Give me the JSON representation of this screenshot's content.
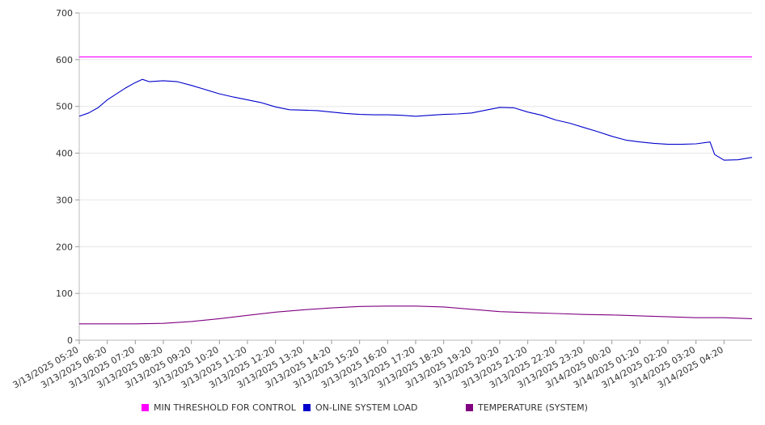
{
  "chart_data": {
    "type": "line",
    "ylim": [
      0,
      700
    ],
    "yticks": [
      0,
      100,
      200,
      300,
      400,
      500,
      600,
      700
    ],
    "xticks": [
      "3/13/2025 05:20",
      "3/13/2025 06:20",
      "3/13/2025 07:20",
      "3/13/2025 08:20",
      "3/13/2025 09:20",
      "3/13/2025 10:20",
      "3/13/2025 11:20",
      "3/13/2025 12:20",
      "3/13/2025 13:20",
      "3/13/2025 14:20",
      "3/13/2025 15:20",
      "3/13/2025 16:20",
      "3/13/2025 17:20",
      "3/13/2025 18:20",
      "3/13/2025 19:20",
      "3/13/2025 20:20",
      "3/13/2025 21:20",
      "3/13/2025 22:20",
      "3/13/2025 23:20",
      "3/14/2025 00:20",
      "3/14/2025 01:20",
      "3/14/2025 02:20",
      "3/14/2025 03:20",
      "3/14/2025 04:20"
    ],
    "x_end": "3/14/2025 05:20",
    "legend_position": "bottom",
    "grid": true,
    "series": [
      {
        "name": "MIN THRESHOLD FOR CONTROL",
        "color": "#ff00ff",
        "points": [
          [
            "3/13/2025 05:20",
            606
          ],
          [
            "3/14/2025 05:20",
            606
          ]
        ]
      },
      {
        "name": "ON-LINE SYSTEM LOAD",
        "color": "#0000cc",
        "points": [
          [
            "3/13/2025 05:20",
            479
          ],
          [
            "3/13/2025 05:40",
            486
          ],
          [
            "3/13/2025 06:00",
            497
          ],
          [
            "3/13/2025 06:20",
            514
          ],
          [
            "3/13/2025 06:40",
            527
          ],
          [
            "3/13/2025 07:00",
            540
          ],
          [
            "3/13/2025 07:20",
            551
          ],
          [
            "3/13/2025 07:35",
            558
          ],
          [
            "3/13/2025 07:50",
            553
          ],
          [
            "3/13/2025 08:20",
            555
          ],
          [
            "3/13/2025 08:50",
            553
          ],
          [
            "3/13/2025 09:20",
            545
          ],
          [
            "3/13/2025 09:50",
            536
          ],
          [
            "3/13/2025 10:20",
            527
          ],
          [
            "3/13/2025 10:50",
            520
          ],
          [
            "3/13/2025 11:20",
            514
          ],
          [
            "3/13/2025 11:50",
            508
          ],
          [
            "3/13/2025 12:20",
            499
          ],
          [
            "3/13/2025 12:50",
            493
          ],
          [
            "3/13/2025 13:20",
            492
          ],
          [
            "3/13/2025 13:50",
            491
          ],
          [
            "3/13/2025 14:20",
            488
          ],
          [
            "3/13/2025 14:50",
            485
          ],
          [
            "3/13/2025 15:20",
            483
          ],
          [
            "3/13/2025 15:50",
            482
          ],
          [
            "3/13/2025 16:20",
            482
          ],
          [
            "3/13/2025 16:50",
            481
          ],
          [
            "3/13/2025 17:20",
            479
          ],
          [
            "3/13/2025 17:50",
            481
          ],
          [
            "3/13/2025 18:20",
            483
          ],
          [
            "3/13/2025 18:50",
            484
          ],
          [
            "3/13/2025 19:20",
            486
          ],
          [
            "3/13/2025 19:50",
            492
          ],
          [
            "3/13/2025 20:20",
            498
          ],
          [
            "3/13/2025 20:50",
            497
          ],
          [
            "3/13/2025 21:20",
            488
          ],
          [
            "3/13/2025 21:50",
            481
          ],
          [
            "3/13/2025 22:20",
            471
          ],
          [
            "3/13/2025 22:50",
            464
          ],
          [
            "3/13/2025 23:20",
            455
          ],
          [
            "3/13/2025 23:50",
            446
          ],
          [
            "3/14/2025 00:20",
            436
          ],
          [
            "3/14/2025 00:50",
            428
          ],
          [
            "3/14/2025 01:20",
            424
          ],
          [
            "3/14/2025 01:50",
            421
          ],
          [
            "3/14/2025 02:20",
            419
          ],
          [
            "3/14/2025 02:50",
            419
          ],
          [
            "3/14/2025 03:20",
            420
          ],
          [
            "3/14/2025 03:50",
            424
          ],
          [
            "3/14/2025 04:00",
            397
          ],
          [
            "3/14/2025 04:20",
            385
          ],
          [
            "3/14/2025 04:50",
            386
          ],
          [
            "3/14/2025 05:20",
            391
          ]
        ]
      },
      {
        "name": "TEMPERATURE (SYSTEM)",
        "color": "#800080",
        "points": [
          [
            "3/13/2025 05:20",
            35
          ],
          [
            "3/13/2025 06:20",
            35
          ],
          [
            "3/13/2025 07:20",
            35
          ],
          [
            "3/13/2025 08:20",
            36
          ],
          [
            "3/13/2025 09:20",
            40
          ],
          [
            "3/13/2025 10:20",
            46
          ],
          [
            "3/13/2025 11:20",
            53
          ],
          [
            "3/13/2025 12:20",
            60
          ],
          [
            "3/13/2025 13:20",
            65
          ],
          [
            "3/13/2025 14:20",
            69
          ],
          [
            "3/13/2025 15:20",
            72
          ],
          [
            "3/13/2025 16:20",
            73
          ],
          [
            "3/13/2025 17:20",
            73
          ],
          [
            "3/13/2025 18:20",
            71
          ],
          [
            "3/13/2025 19:20",
            66
          ],
          [
            "3/13/2025 20:20",
            61
          ],
          [
            "3/13/2025 21:20",
            59
          ],
          [
            "3/13/2025 22:20",
            57
          ],
          [
            "3/13/2025 23:20",
            55
          ],
          [
            "3/14/2025 00:20",
            54
          ],
          [
            "3/14/2025 01:20",
            52
          ],
          [
            "3/14/2025 02:20",
            50
          ],
          [
            "3/14/2025 03:20",
            48
          ],
          [
            "3/14/2025 04:20",
            48
          ],
          [
            "3/14/2025 05:20",
            46
          ]
        ]
      }
    ]
  }
}
